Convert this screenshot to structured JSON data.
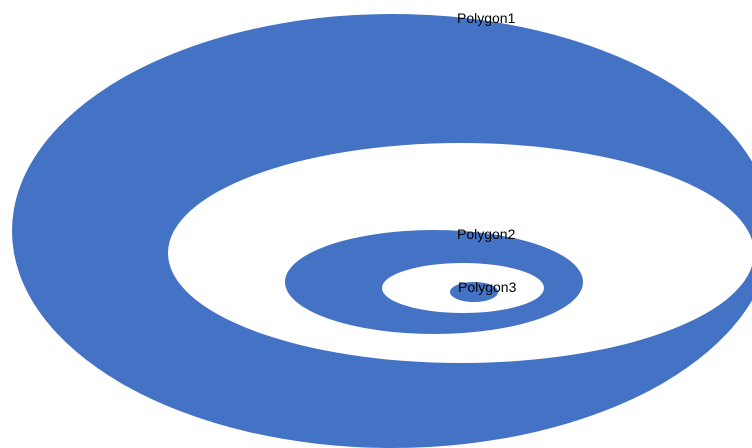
{
  "colors": {
    "ring_fill": "#4472C4",
    "hole_fill": "#FFFFFF",
    "label_color": "#000000",
    "background": "#FFFFFF"
  },
  "polygons": [
    {
      "label": "Polygon1"
    },
    {
      "label": "Polygon2"
    },
    {
      "label": "Polygon3"
    }
  ]
}
